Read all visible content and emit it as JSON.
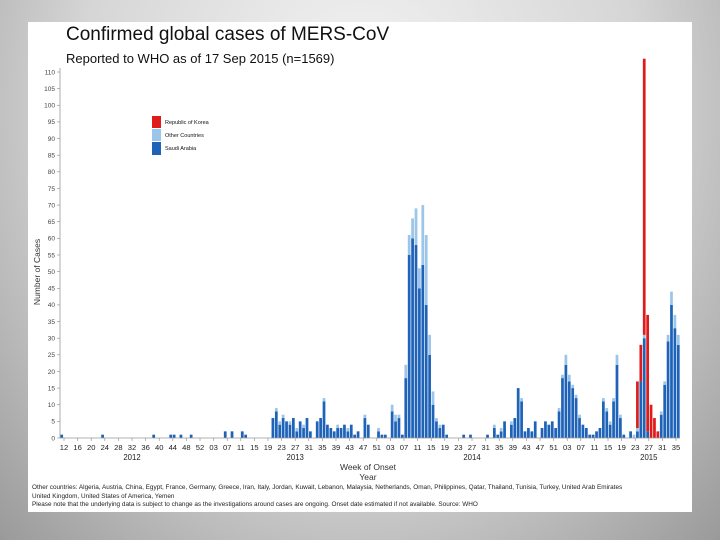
{
  "title": "Confirmed global cases of MERS-CoV",
  "subtitle": "Reported to WHO as of 17 Sep 2015 (n=1569)",
  "colors": {
    "saudi": "#1e63b8",
    "other": "#9cc5ea",
    "korea": "#e01b1b"
  },
  "notes": {
    "line1": "Other countries: Algeria, Austria, China, Egypt, France, Germany, Greece, Iran, Italy, Jordan, Kuwait, Lebanon, Malaysia, Netherlands, Oman, Philippines, Qatar, Thailand, Tunisia, Turkey, United Arab Emirates",
    "line2": "United Kingdom, United States of America, Yemen",
    "line3": "Please note that the underlying data is subject to change as the investigations around cases are ongoing. Onset date estimated if not available. Source: WHO"
  },
  "chart_data": {
    "type": "bar",
    "stacked": true,
    "title": "Confirmed global cases of MERS-CoV",
    "subtitle": "Reported to WHO as of 17 Sep 2015 (n=1569)",
    "ylabel": "Number of Cases",
    "xlabel": "Week of Onset",
    "xlabel2": "Year",
    "ylim": [
      0,
      110
    ],
    "yticks": [
      0,
      5,
      10,
      15,
      20,
      25,
      30,
      35,
      40,
      45,
      50,
      55,
      60,
      65,
      70,
      75,
      80,
      85,
      90,
      95,
      100,
      105,
      110
    ],
    "xtick_labels": [
      "12",
      "16",
      "20",
      "24",
      "28",
      "32",
      "36",
      "40",
      "44",
      "48",
      "52",
      "03",
      "07",
      "11",
      "15",
      "19",
      "23",
      "27",
      "31",
      "35",
      "39",
      "43",
      "47",
      "51",
      "03",
      "07",
      "11",
      "15",
      "19",
      "23",
      "27",
      "31",
      "35",
      "39",
      "43",
      "47",
      "51",
      "03",
      "07",
      "11",
      "15",
      "19",
      "23",
      "27",
      "31",
      "35"
    ],
    "years": [
      "2012",
      "2013",
      "2014",
      "2015"
    ],
    "series_order": [
      "Saudi Arabia",
      "Other Countries",
      "Republic of Korea"
    ],
    "legend": [
      "Republic of Korea",
      "Other Countries",
      "Saudi Arabia"
    ],
    "series": [
      {
        "name": "Saudi Arabia",
        "values": [
          1,
          0,
          0,
          0,
          0,
          0,
          0,
          0,
          0,
          0,
          0,
          0,
          1,
          0,
          0,
          0,
          0,
          0,
          0,
          0,
          0,
          0,
          0,
          0,
          0,
          0,
          0,
          1,
          0,
          0,
          0,
          0,
          1,
          1,
          0,
          1,
          0,
          0,
          1,
          0,
          0,
          0,
          0,
          0,
          0,
          0,
          0,
          0,
          2,
          0,
          2,
          0,
          0,
          2,
          1,
          0,
          0,
          0,
          0,
          0,
          0,
          0,
          6,
          8,
          4,
          6,
          5,
          4,
          6,
          2,
          5,
          3,
          6,
          2,
          0,
          5,
          6,
          11,
          4,
          3,
          2,
          3,
          3,
          4,
          2,
          4,
          1,
          2,
          0,
          6,
          4,
          0,
          0,
          2,
          1,
          1,
          0,
          8,
          5,
          6,
          1,
          18,
          55,
          60,
          58,
          45,
          52,
          40,
          25,
          10,
          5,
          3,
          4,
          1,
          0,
          0,
          0,
          0,
          1,
          0,
          1,
          0,
          0,
          0,
          0,
          1,
          0,
          3,
          1,
          2,
          5,
          0,
          4,
          6,
          15,
          11,
          2,
          3,
          2,
          5,
          0,
          3,
          5,
          4,
          5,
          3,
          8,
          18,
          22,
          17,
          15,
          12,
          6,
          4,
          3,
          1,
          1,
          2,
          3,
          11,
          8,
          4,
          11,
          22,
          6,
          1,
          0,
          2,
          0,
          2,
          17,
          30,
          2,
          0,
          0,
          0,
          7,
          16,
          29,
          40,
          33,
          28
        ]
      },
      {
        "name": "Other Countries",
        "values": [
          0,
          0,
          0,
          0,
          0,
          0,
          0,
          0,
          0,
          0,
          0,
          0,
          0,
          0,
          0,
          0,
          0,
          0,
          0,
          0,
          0,
          0,
          0,
          0,
          0,
          0,
          0,
          0,
          0,
          0,
          0,
          0,
          0,
          0,
          0,
          0,
          0,
          0,
          0,
          0,
          0,
          0,
          0,
          0,
          0,
          0,
          0,
          0,
          0,
          0,
          0,
          0,
          0,
          0,
          0,
          0,
          0,
          0,
          0,
          0,
          0,
          0,
          0,
          1,
          1,
          1,
          0,
          1,
          0,
          1,
          0,
          1,
          0,
          0,
          0,
          0,
          0,
          1,
          0,
          0,
          0,
          1,
          0,
          0,
          1,
          0,
          0,
          0,
          0,
          1,
          0,
          0,
          0,
          1,
          0,
          0,
          0,
          2,
          2,
          1,
          0,
          4,
          6,
          6,
          11,
          6,
          18,
          21,
          6,
          4,
          1,
          1,
          0,
          0,
          0,
          0,
          0,
          0,
          0,
          0,
          0,
          0,
          0,
          0,
          0,
          0,
          0,
          1,
          0,
          1,
          0,
          0,
          1,
          0,
          0,
          1,
          0,
          0,
          0,
          0,
          0,
          0,
          0,
          0,
          0,
          0,
          1,
          1,
          3,
          2,
          1,
          1,
          1,
          0,
          0,
          0,
          0,
          0,
          0,
          1,
          1,
          1,
          1,
          3,
          1,
          0,
          0,
          0,
          1,
          1,
          0,
          1,
          0,
          0,
          0,
          0,
          1,
          1,
          2,
          4,
          4,
          3
        ]
      },
      {
        "name": "Republic of Korea",
        "values": [
          0,
          0,
          0,
          0,
          0,
          0,
          0,
          0,
          0,
          0,
          0,
          0,
          0,
          0,
          0,
          0,
          0,
          0,
          0,
          0,
          0,
          0,
          0,
          0,
          0,
          0,
          0,
          0,
          0,
          0,
          0,
          0,
          0,
          0,
          0,
          0,
          0,
          0,
          0,
          0,
          0,
          0,
          0,
          0,
          0,
          0,
          0,
          0,
          0,
          0,
          0,
          0,
          0,
          0,
          0,
          0,
          0,
          0,
          0,
          0,
          0,
          0,
          0,
          0,
          0,
          0,
          0,
          0,
          0,
          0,
          0,
          0,
          0,
          0,
          0,
          0,
          0,
          0,
          0,
          0,
          0,
          0,
          0,
          0,
          0,
          0,
          0,
          0,
          0,
          0,
          0,
          0,
          0,
          0,
          0,
          0,
          0,
          0,
          0,
          0,
          0,
          0,
          0,
          0,
          0,
          0,
          0,
          0,
          0,
          0,
          0,
          0,
          0,
          0,
          0,
          0,
          0,
          0,
          0,
          0,
          0,
          0,
          0,
          0,
          0,
          0,
          0,
          0,
          0,
          0,
          0,
          0,
          0,
          0,
          0,
          0,
          0,
          0,
          0,
          0,
          0,
          0,
          0,
          0,
          0,
          0,
          0,
          0,
          0,
          0,
          0,
          0,
          0,
          0,
          0,
          0,
          0,
          0,
          0,
          0,
          0,
          0,
          0,
          0,
          0,
          0,
          0,
          0,
          0,
          14,
          11,
          83,
          35,
          10,
          6,
          2,
          0,
          0,
          0,
          0,
          0,
          0,
          0,
          0,
          0,
          0
        ]
      }
    ]
  }
}
